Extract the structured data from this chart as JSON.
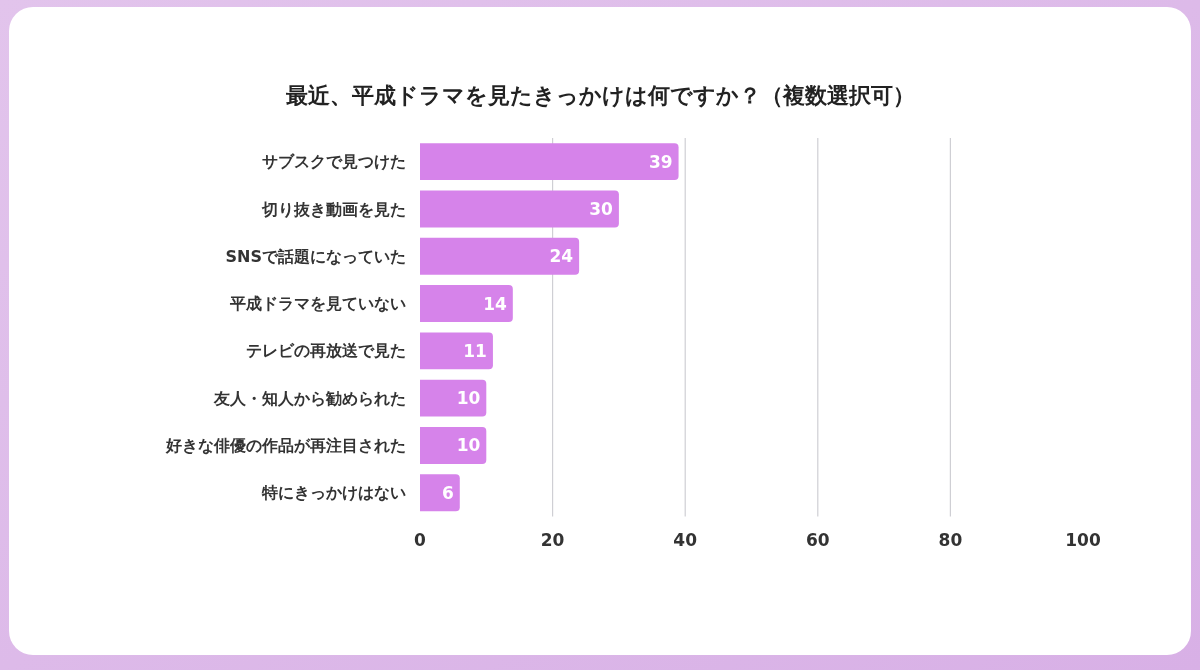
{
  "chart_data": {
    "type": "bar",
    "orientation": "horizontal",
    "title": "最近、平成ドラマを見たきっかけは何ですか？（複数選択可）",
    "categories": [
      "サブスクで見つけた",
      "切り抜き動画を見た",
      "SNSで話題になっていた",
      "平成ドラマを見ていない",
      "テレビの再放送で見た",
      "友人・知人から勧められた",
      "好きな俳優の作品が再注目された",
      "特にきっかけはない"
    ],
    "values": [
      39,
      30,
      24,
      14,
      11,
      10,
      10,
      6
    ],
    "color": "#d683ea",
    "xlim": [
      0,
      100
    ],
    "xticks": [
      0,
      20,
      40,
      60,
      80,
      100
    ],
    "grid": "x",
    "data_labels": true
  }
}
